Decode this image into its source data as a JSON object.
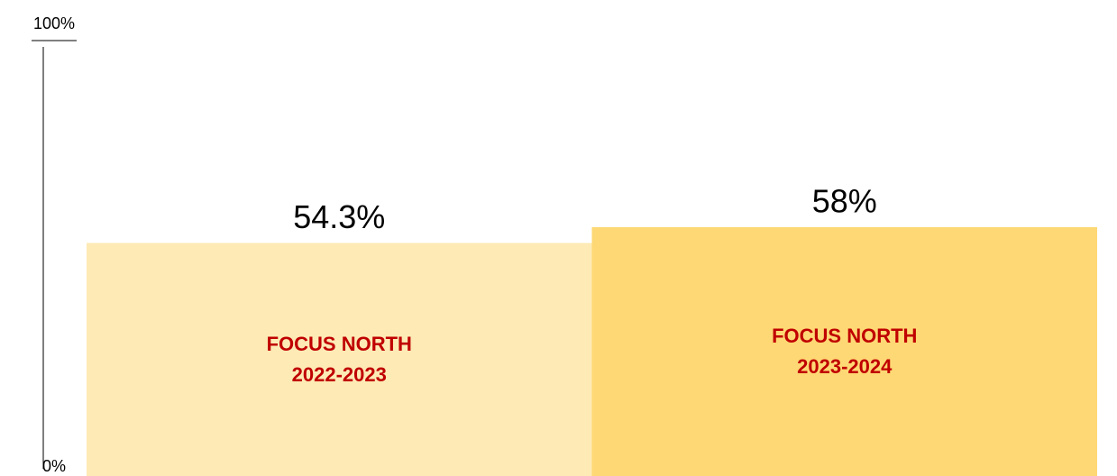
{
  "chart_data": {
    "type": "bar",
    "categories": [
      "FOCUS NORTH\n2022-2023",
      "FOCUS NORTH\n2023-2024"
    ],
    "values": [
      54.3,
      58
    ],
    "value_labels": [
      "54.3%",
      "58%"
    ],
    "colors": [
      "#fdeab5",
      "#fed874"
    ],
    "label_color": "#c00000",
    "ylim": [
      0,
      100
    ],
    "yticks": [
      {
        "value": 0,
        "label": "0%"
      },
      {
        "value": 100,
        "label": "100%"
      }
    ],
    "grid": false
  }
}
